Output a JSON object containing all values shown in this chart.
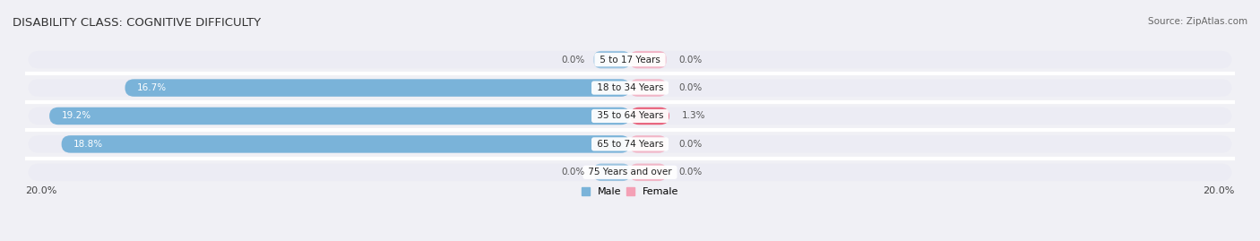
{
  "title": "DISABILITY CLASS: COGNITIVE DIFFICULTY",
  "source": "Source: ZipAtlas.com",
  "categories": [
    "5 to 17 Years",
    "18 to 34 Years",
    "35 to 64 Years",
    "65 to 74 Years",
    "75 Years and over"
  ],
  "male_values": [
    0.0,
    16.7,
    19.2,
    18.8,
    0.0
  ],
  "female_values": [
    0.0,
    0.0,
    1.3,
    0.0,
    0.0
  ],
  "male_labels": [
    "0.0%",
    "16.7%",
    "19.2%",
    "18.8%",
    "0.0%"
  ],
  "female_labels": [
    "0.0%",
    "0.0%",
    "1.3%",
    "0.0%",
    "0.0%"
  ],
  "max_val": 20.0,
  "male_color": "#7ab3d9",
  "female_color": "#f4a0b5",
  "female_color_dark": "#e8607a",
  "bg_color": "#f0f0f5",
  "bar_bg_color": "#e4e4ec",
  "row_bg_color": "#ececf4",
  "title_fontsize": 9.5,
  "source_fontsize": 7.5,
  "label_fontsize": 7.5,
  "axis_label_fontsize": 8,
  "category_fontsize": 7.5,
  "bar_height": 0.62,
  "xlim": 20.0
}
